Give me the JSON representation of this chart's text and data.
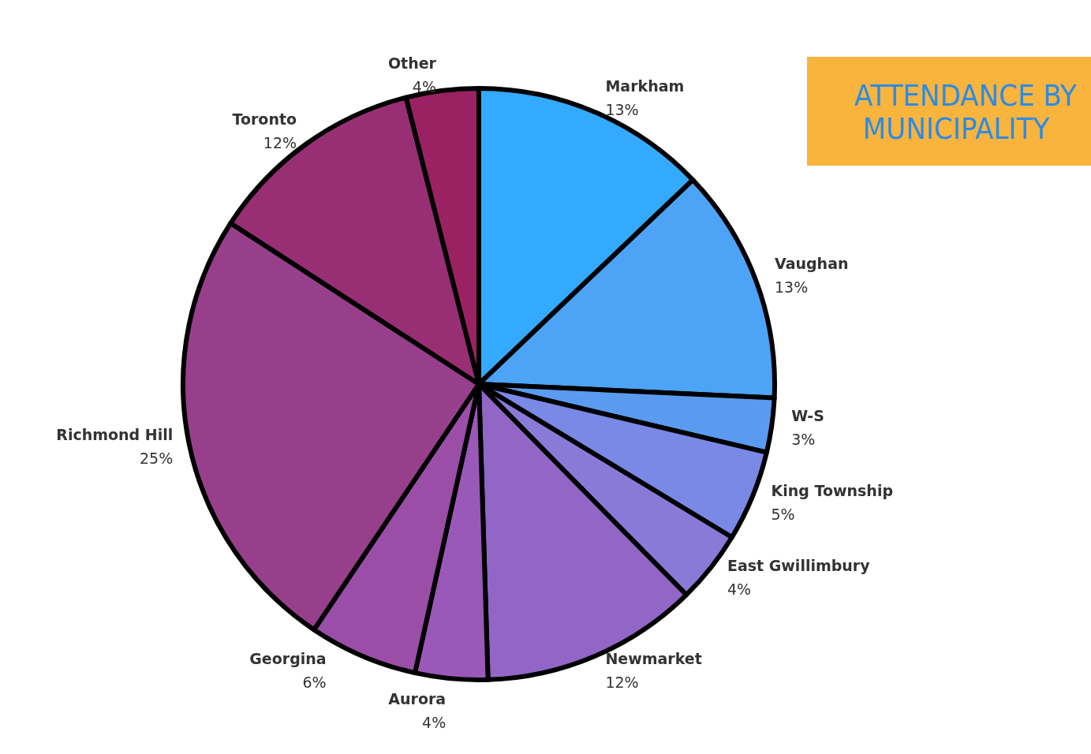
{
  "chart_data": {
    "type": "pie",
    "title": "ATTENDANCE BY MUNICIPALITY",
    "categories": [
      "Markham",
      "Vaughan",
      "W-S",
      "King Township",
      "East Gwillimbury",
      "Newmarket",
      "Aurora",
      "Georgina",
      "Richmond Hill",
      "Toronto",
      "Other"
    ],
    "values": [
      13,
      13,
      3,
      5,
      4,
      12,
      4,
      6,
      25,
      12,
      4
    ],
    "colors": [
      "#33aaff",
      "#4da3f5",
      "#5a9bf0",
      "#7a88e6",
      "#8a7ad8",
      "#9266c6",
      "#9a58b8",
      "#9a4ea8",
      "#983f8c",
      "#982f74",
      "#9a2262"
    ],
    "value_labels": [
      "13%",
      "13%",
      "3%",
      "5%",
      "4%",
      "12%",
      "4%",
      "6%",
      "25%",
      "12%",
      "4%"
    ],
    "legend": false
  }
}
